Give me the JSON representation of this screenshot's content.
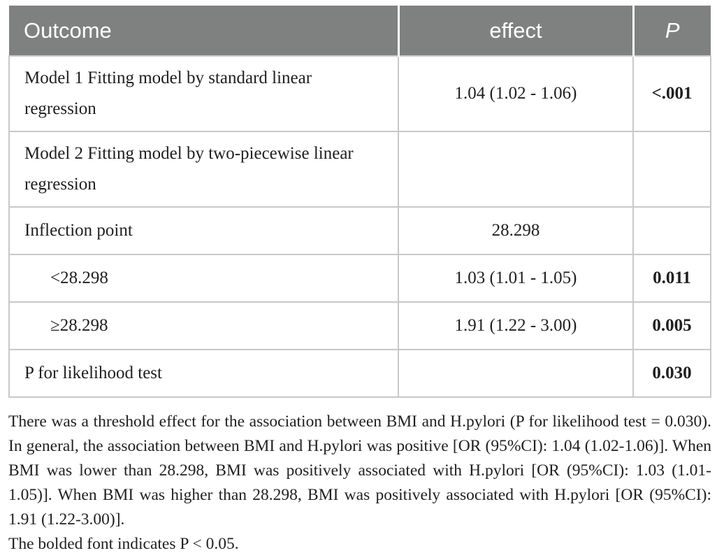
{
  "table": {
    "headers": {
      "outcome": "Outcome",
      "effect": "effect",
      "p": "P"
    },
    "rows": [
      {
        "outcome": "Model 1 Fitting model by standard linear regression",
        "effect": "1.04 (1.02 - 1.06)",
        "p": "<.001"
      },
      {
        "outcome": "Model 2 Fitting model by two-piecewise linear regression",
        "effect": "",
        "p": ""
      },
      {
        "outcome": "Inflection point",
        "effect": "28.298",
        "p": ""
      },
      {
        "outcome": "<28.298",
        "effect": "1.03 (1.01 - 1.05)",
        "p": "0.011"
      },
      {
        "outcome": "≥28.298",
        "effect": "1.91 (1.22 - 3.00)",
        "p": "0.005"
      },
      {
        "outcome": "P for likelihood test",
        "effect": "",
        "p": "0.030"
      }
    ]
  },
  "footnote": {
    "main": "There was a threshold effect for the association between BMI and H.pylori (P for likelihood test = 0.030). In general, the association between BMI and H.pylori was positive [OR (95%CI): 1.04 (1.02-1.06)]. When BMI was lower than 28.298, BMI was positively associated with H.pylori [OR (95%CI): 1.03 (1.01-1.05)]. When BMI was higher than 28.298, BMI was positively associated with H.pylori [OR (95%CI): 1.91 (1.22-3.00)].",
    "last": "The bolded font indicates P < 0.05."
  },
  "colors": {
    "header_background": "#7f8180",
    "header_text": "#ffffff",
    "border": "#c8c8c8",
    "body_text": "#1f1f1f"
  }
}
